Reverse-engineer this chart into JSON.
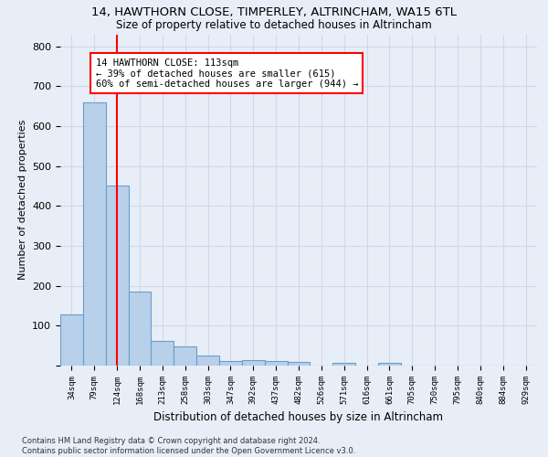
{
  "title_line1": "14, HAWTHORN CLOSE, TIMPERLEY, ALTRINCHAM, WA15 6TL",
  "title_line2": "Size of property relative to detached houses in Altrincham",
  "xlabel": "Distribution of detached houses by size in Altrincham",
  "ylabel": "Number of detached properties",
  "footnote": "Contains HM Land Registry data © Crown copyright and database right 2024.\nContains public sector information licensed under the Open Government Licence v3.0.",
  "bin_labels": [
    "34sqm",
    "79sqm",
    "124sqm",
    "168sqm",
    "213sqm",
    "258sqm",
    "303sqm",
    "347sqm",
    "392sqm",
    "437sqm",
    "482sqm",
    "526sqm",
    "571sqm",
    "616sqm",
    "661sqm",
    "705sqm",
    "750sqm",
    "795sqm",
    "840sqm",
    "884sqm",
    "929sqm"
  ],
  "bar_values": [
    128,
    660,
    452,
    185,
    62,
    47,
    25,
    12,
    13,
    11,
    9,
    0,
    7,
    0,
    8,
    0,
    0,
    0,
    0,
    0,
    0
  ],
  "bar_color": "#b8d0ea",
  "bar_edge_color": "#6b9dc8",
  "vline_x": 2.0,
  "annotation_text": "14 HAWTHORN CLOSE: 113sqm\n← 39% of detached houses are smaller (615)\n60% of semi-detached houses are larger (944) →",
  "annotation_box_color": "white",
  "annotation_box_edge_color": "red",
  "vline_color": "red",
  "background_color": "#e8eef8",
  "grid_color": "#d0d8e8",
  "ylim": [
    0,
    830
  ],
  "yticks": [
    0,
    100,
    200,
    300,
    400,
    500,
    600,
    700,
    800
  ]
}
